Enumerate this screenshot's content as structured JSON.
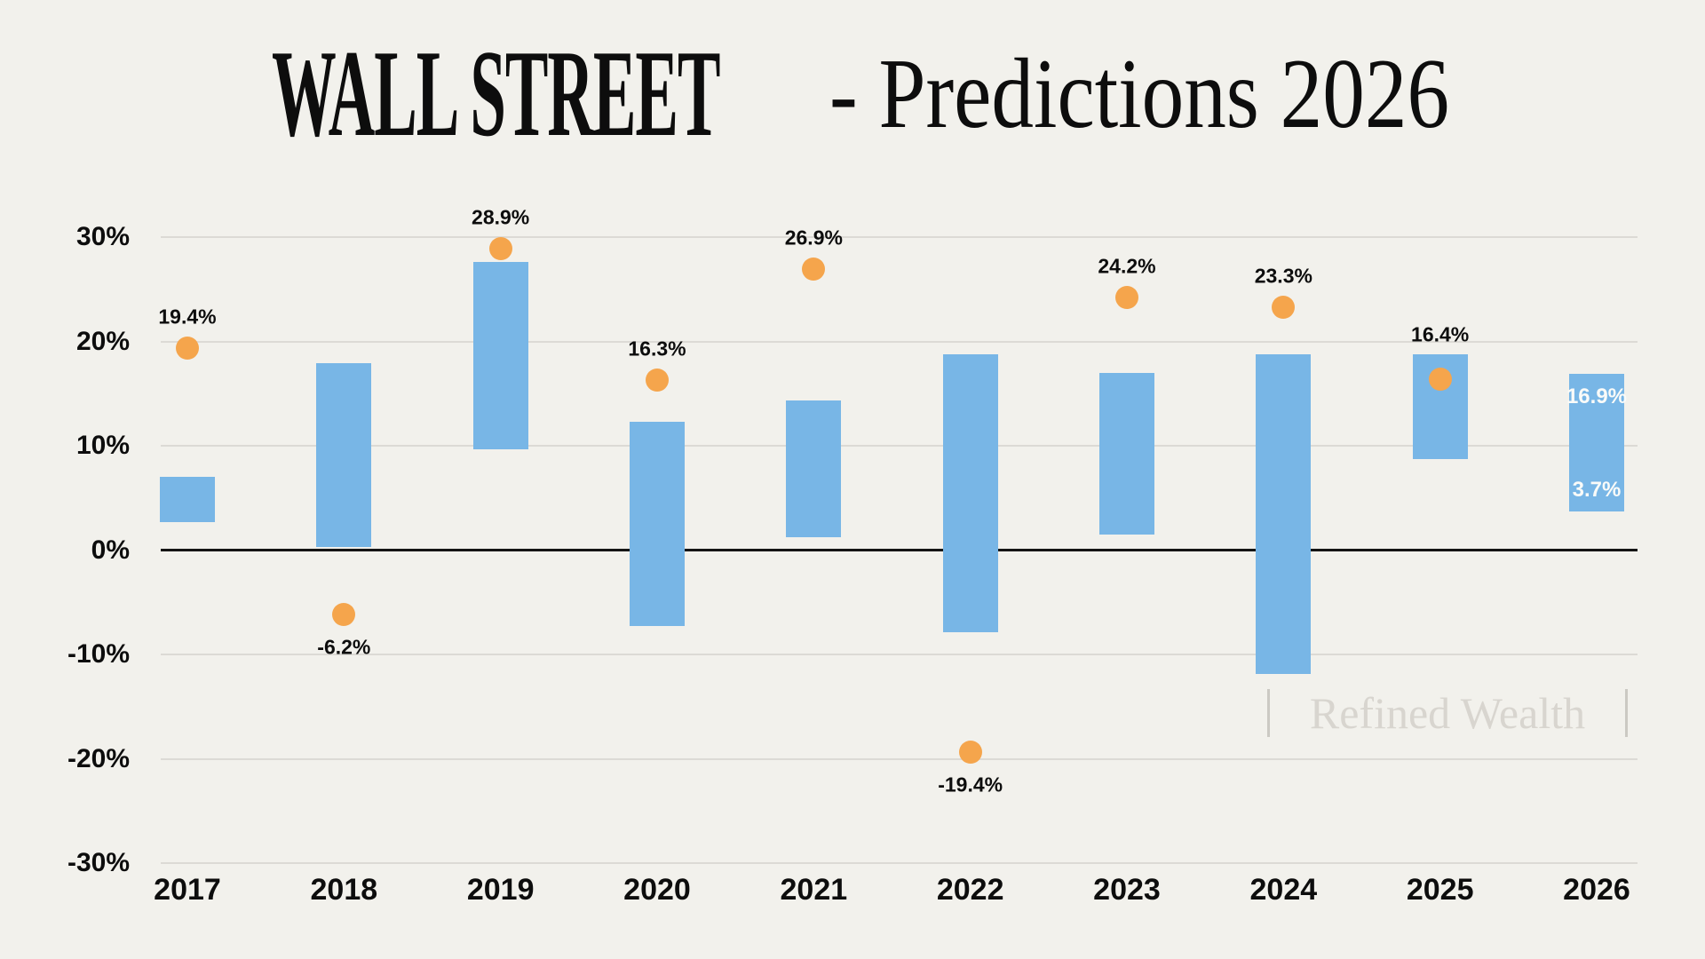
{
  "title": {
    "brand": "WALL STREET",
    "suffix": "- Predictions 2026"
  },
  "watermark": {
    "text": "Refined Wealth"
  },
  "chart_data": {
    "type": "bar",
    "title": "WALL STREET - Predictions 2026",
    "subtitle": "",
    "categories": [
      "2017",
      "2018",
      "2019",
      "2020",
      "2021",
      "2022",
      "2023",
      "2024",
      "2025",
      "2026"
    ],
    "ylim": [
      -30,
      30
    ],
    "grid": true,
    "legend": "none",
    "yticks": [
      {
        "value": 30,
        "label": "30%"
      },
      {
        "value": 20,
        "label": "20%"
      },
      {
        "value": 10,
        "label": "10%"
      },
      {
        "value": 0,
        "label": "0%"
      },
      {
        "value": -10,
        "label": "-10%"
      },
      {
        "value": -20,
        "label": "-20%"
      },
      {
        "value": -30,
        "label": "-30%"
      }
    ],
    "series": [
      {
        "name": "prediction-range-bars",
        "type": "range_bar",
        "ranges": [
          [
            2.7,
            7.0
          ],
          [
            0.3,
            17.9
          ],
          [
            9.7,
            27.6
          ],
          [
            -7.3,
            12.3
          ],
          [
            1.2,
            14.3
          ],
          [
            -7.9,
            18.8
          ],
          [
            1.5,
            17.0
          ],
          [
            -11.9,
            18.8
          ],
          [
            8.7,
            18.8
          ],
          [
            3.7,
            16.9
          ]
        ]
      },
      {
        "name": "actual-return-dots",
        "type": "scatter",
        "values": [
          19.4,
          -6.2,
          28.9,
          16.3,
          26.9,
          -19.4,
          24.2,
          23.3,
          16.4,
          null
        ],
        "labels": [
          "19.4%",
          "-6.2%",
          "28.9%",
          "16.3%",
          "26.9%",
          "-19.4%",
          "24.2%",
          "23.3%",
          "16.4%",
          ""
        ]
      }
    ],
    "range_bar_value_labels": {
      "category": "2026",
      "high_label": "16.9%",
      "low_label": "3.7%"
    }
  },
  "colors": {
    "background": "#f2f1ec",
    "bar": "#78b6e6",
    "dot": "#f5a54c",
    "gridline": "#dcdad5",
    "zero_line": "#141414",
    "text": "#0d0d0d",
    "bar_label_text": "#fafbf9",
    "watermark_text": "#d8d5cf",
    "watermark_bar": "#cbc9c3"
  }
}
